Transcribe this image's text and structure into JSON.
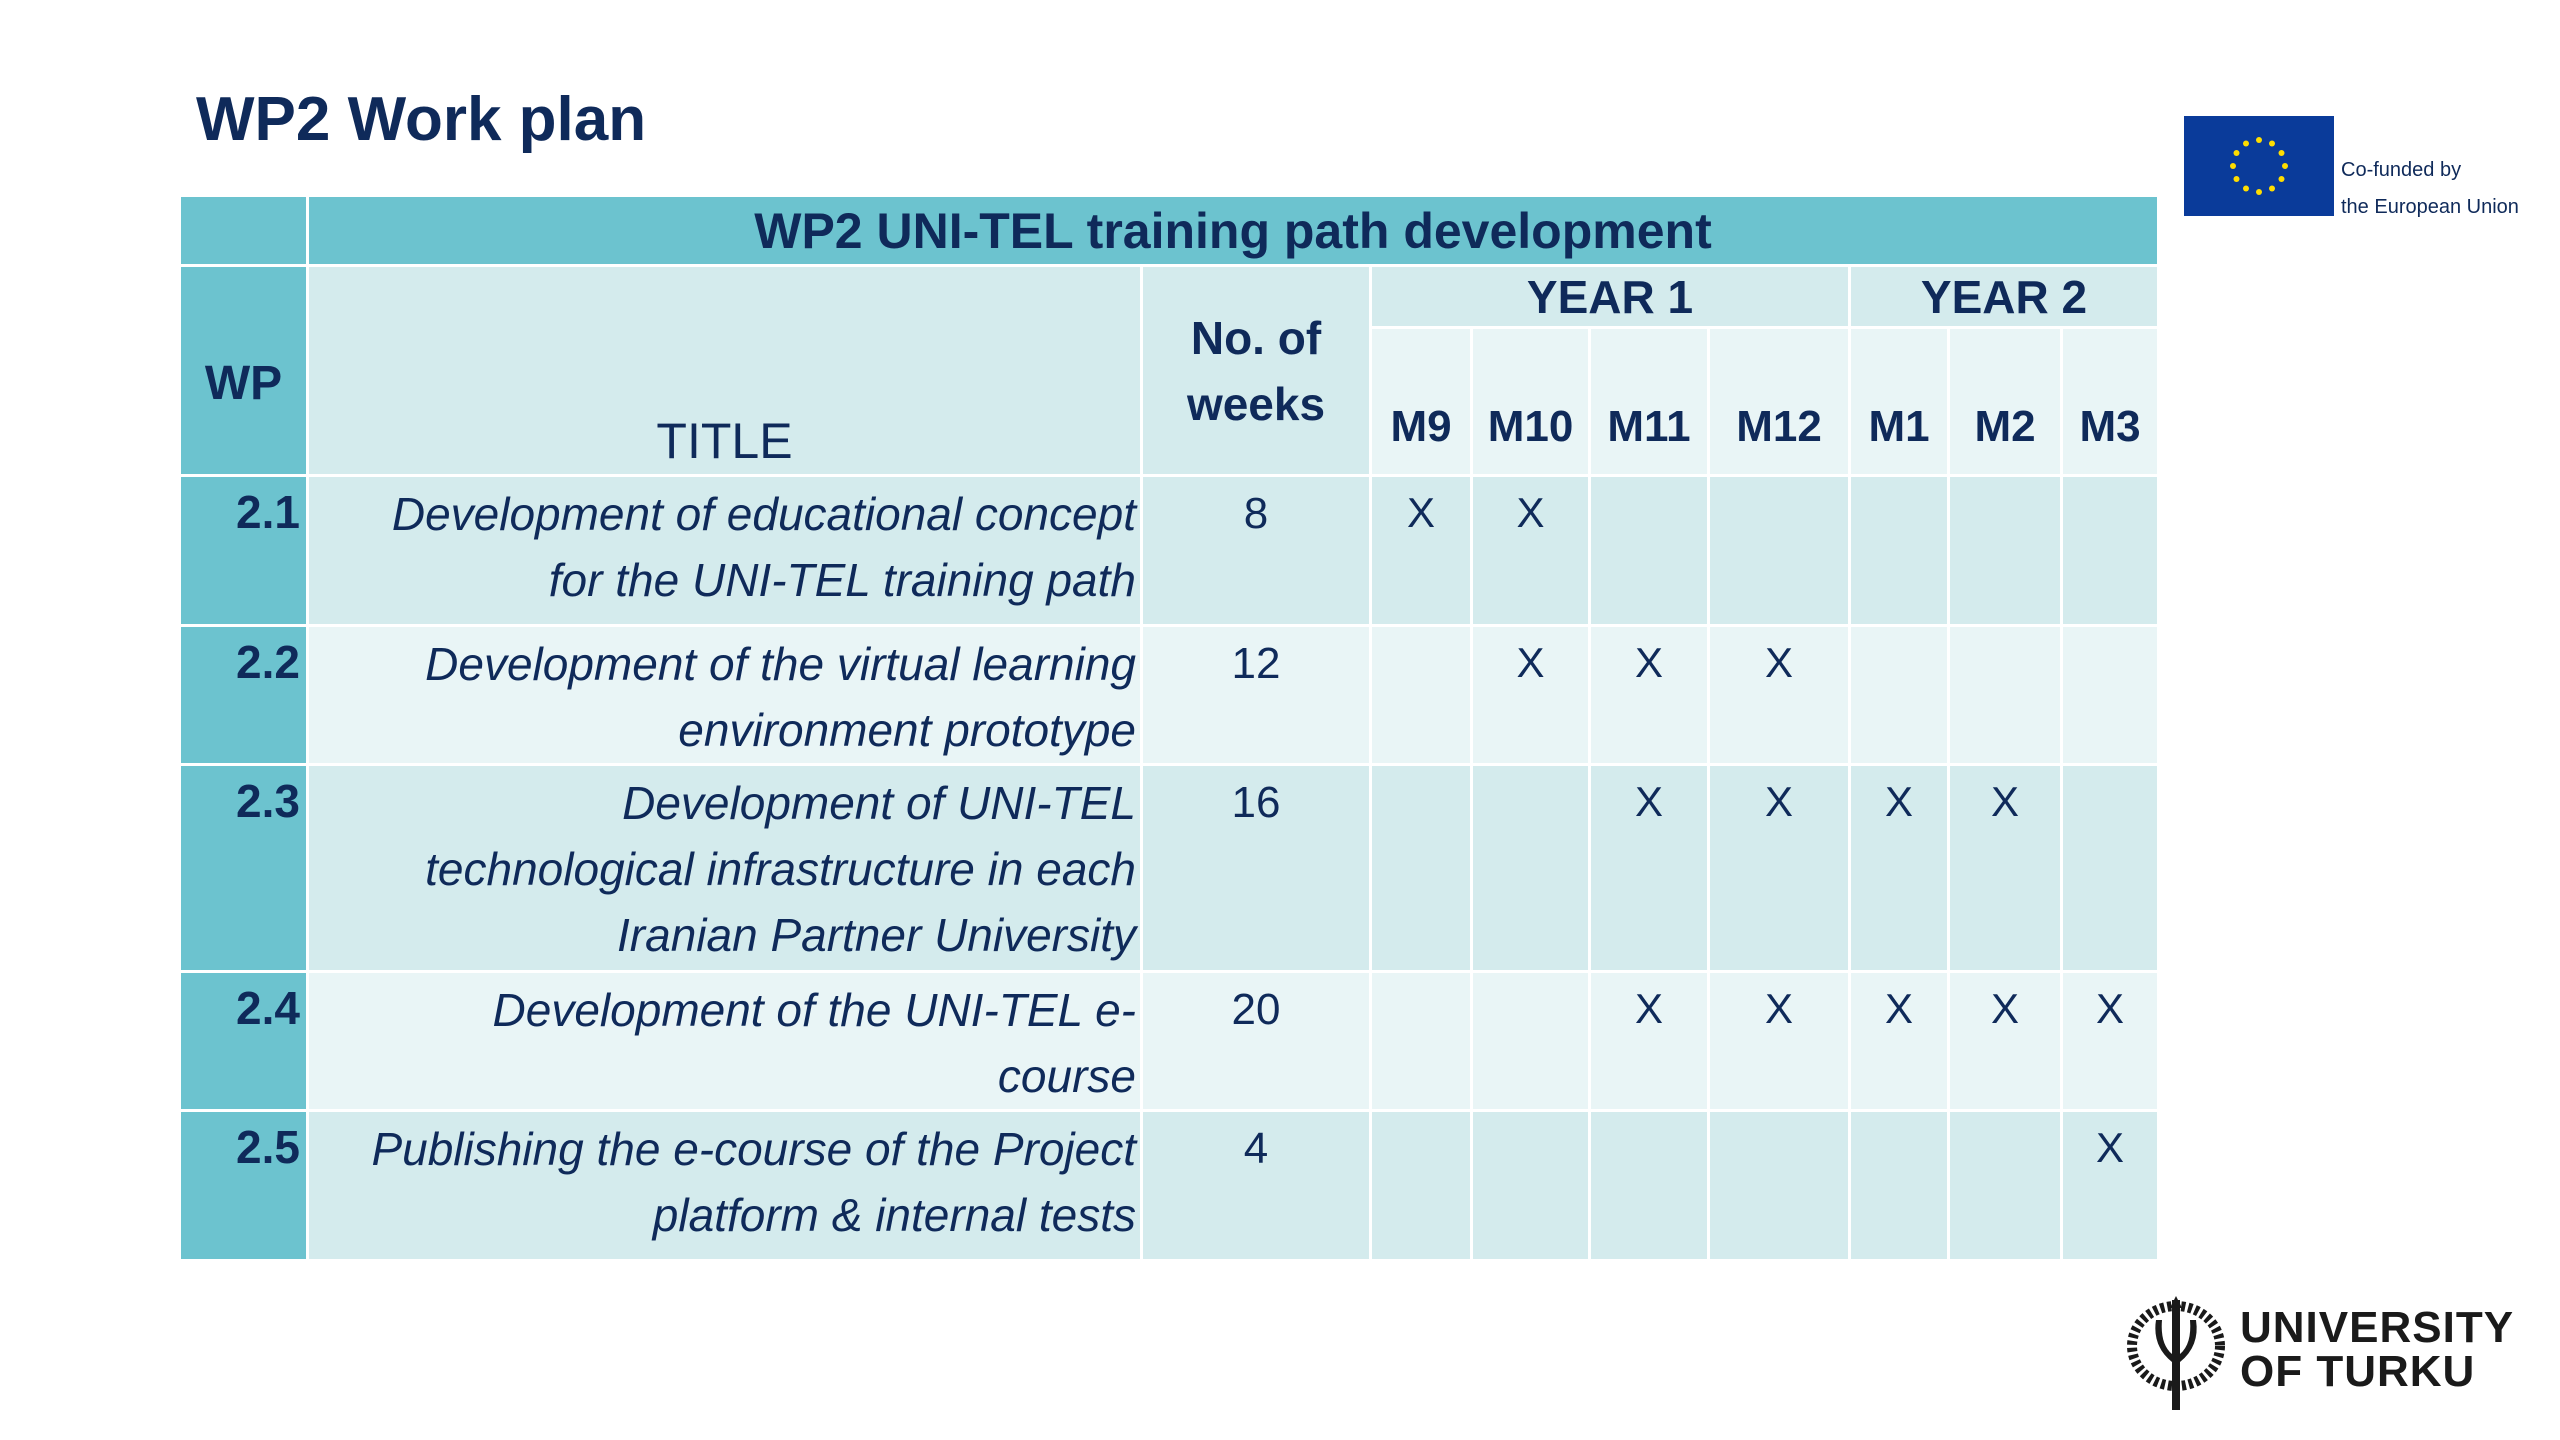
{
  "page": {
    "title": "WP2 Work plan"
  },
  "logos": {
    "eu": {
      "line1": "Co-funded by",
      "line2": "the European Union",
      "flag_color": "#0a3b9a",
      "star_color": "#ffdd00"
    },
    "university": {
      "line1": "UNIVERSITY",
      "line2": "OF TURKU"
    }
  },
  "table": {
    "header": {
      "main": "WP2 UNI-TEL training path development",
      "wp": "WP",
      "title": "TITLE",
      "weeks_line1": "No. of",
      "weeks_line2": "weeks",
      "year1": "YEAR 1",
      "year2": "YEAR 2",
      "months": [
        "M9",
        "M10",
        "M11",
        "M12",
        "M1",
        "M2",
        "M3"
      ]
    },
    "rows": [
      {
        "wp": "2.1",
        "title_lines": [
          "Development of educational concept",
          "for the UNI-TEL training path"
        ],
        "weeks": "8",
        "marks": [
          "X",
          "X",
          "",
          "",
          "",
          "",
          ""
        ]
      },
      {
        "wp": "2.2",
        "title_lines": [
          "Development of the virtual learning",
          "environment prototype"
        ],
        "weeks": "12",
        "marks": [
          "",
          "X",
          "X",
          "X",
          "",
          "",
          ""
        ]
      },
      {
        "wp": "2.3",
        "title_lines": [
          "Development of UNI-TEL",
          "technological infrastructure in each",
          "Iranian Partner University"
        ],
        "weeks": "16",
        "marks": [
          "",
          "",
          "X",
          "X",
          "X",
          "X",
          ""
        ]
      },
      {
        "wp": "2.4",
        "title_lines": [
          "Development of the UNI-TEL e-",
          "course"
        ],
        "weeks": "20",
        "marks": [
          "",
          "",
          "X",
          "X",
          "X",
          "X",
          "X"
        ]
      },
      {
        "wp": "2.5",
        "title_lines": [
          "Publishing the e-course of the Project",
          "platform & internal tests"
        ],
        "weeks": "4",
        "marks": [
          "",
          "",
          "",
          "",
          "",
          "",
          "X"
        ]
      }
    ],
    "colors": {
      "dark": "#6cc3cf",
      "mid": "#d4ebed",
      "light": "#e9f5f6",
      "text": "#0f2a5a"
    }
  }
}
